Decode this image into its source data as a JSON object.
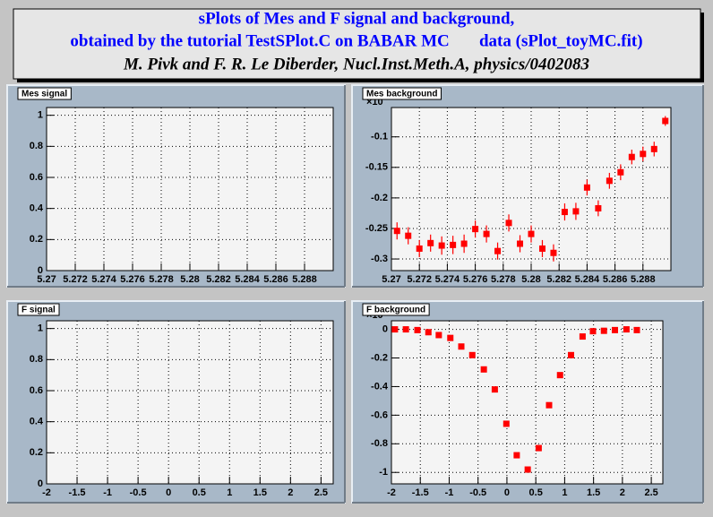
{
  "header": {
    "lines": [
      "sPlots of Mes and F signal and background,",
      "obtained by the tutorial TestSPlot.C on BABAR MC       data (sPlot_toyMC.fit)",
      "M. Pivk and F. R. Le Diberder, Nucl.Inst.Meth.A, physics/0402083"
    ]
  },
  "chart_data": [
    {
      "type": "scatter",
      "title": "Mes signal",
      "xlim": [
        5.27,
        5.29
      ],
      "xticks": [
        5.27,
        5.272,
        5.274,
        5.276,
        5.278,
        5.28,
        5.282,
        5.284,
        5.286,
        5.288
      ],
      "ylim": [
        0,
        1.05
      ],
      "yticks": [
        0,
        0.2,
        0.4,
        0.6,
        0.8,
        1
      ],
      "grid": true
    },
    {
      "type": "scatter",
      "title": "Mes background",
      "y_multiplier": "×10",
      "xlim": [
        5.27,
        5.29
      ],
      "xticks": [
        5.27,
        5.272,
        5.274,
        5.276,
        5.278,
        5.28,
        5.282,
        5.284,
        5.286,
        5.288
      ],
      "ylim": [
        -0.319,
        -0.052
      ],
      "yticks": [
        -0.3,
        -0.25,
        -0.2,
        -0.15,
        -0.1
      ],
      "grid": true,
      "color": "#ff0000",
      "x": [
        5.2704,
        5.2712,
        5.272,
        5.2728,
        5.2736,
        5.2744,
        5.2752,
        5.276,
        5.2768,
        5.2776,
        5.2784,
        5.2792,
        5.28,
        5.2808,
        5.2816,
        5.2824,
        5.2832,
        5.284,
        5.2848,
        5.2856,
        5.2864,
        5.2872,
        5.288,
        5.2888,
        5.2896
      ],
      "values": [
        -0.254,
        -0.262,
        -0.283,
        -0.274,
        -0.278,
        -0.277,
        -0.275,
        -0.251,
        -0.259,
        -0.287,
        -0.241,
        -0.275,
        -0.259,
        -0.283,
        -0.29,
        -0.223,
        -0.222,
        -0.183,
        -0.217,
        -0.172,
        -0.158,
        -0.133,
        -0.128,
        -0.12,
        -0.074
      ],
      "errors": [
        0.014,
        0.014,
        0.014,
        0.014,
        0.015,
        0.015,
        0.015,
        0.014,
        0.014,
        0.014,
        0.014,
        0.014,
        0.014,
        0.014,
        0.014,
        0.014,
        0.014,
        0.013,
        0.013,
        0.013,
        0.013,
        0.012,
        0.012,
        0.012,
        0.008
      ]
    },
    {
      "type": "scatter",
      "title": "F signal",
      "xlim": [
        -2,
        2.7
      ],
      "xticks": [
        -2,
        -1.5,
        -1,
        -0.5,
        0,
        0.5,
        1,
        1.5,
        2,
        2.5
      ],
      "ylim": [
        0,
        1.05
      ],
      "yticks": [
        0,
        0.2,
        0.4,
        0.6,
        0.8,
        1
      ],
      "grid": true
    },
    {
      "type": "scatter",
      "title": "F background",
      "y_multiplier": "×10",
      "xlim": [
        -2,
        2.7
      ],
      "xticks": [
        -2,
        -1.5,
        -1,
        -0.5,
        0,
        0.5,
        1,
        1.5,
        2,
        2.5
      ],
      "ylim": [
        -1.08,
        0.06
      ],
      "yticks": [
        -1,
        -0.8,
        -0.6,
        -0.4,
        -0.2,
        0
      ],
      "grid": true,
      "color": "#ff0000",
      "x": [
        -1.94,
        -1.75,
        -1.55,
        -1.36,
        -1.18,
        -0.98,
        -0.79,
        -0.6,
        -0.4,
        -0.21,
        -0.01,
        0.17,
        0.36,
        0.55,
        0.73,
        0.92,
        1.11,
        1.31,
        1.49,
        1.68,
        1.87,
        2.07,
        2.25
      ],
      "values": [
        0,
        0,
        -0.005,
        -0.02,
        -0.04,
        -0.06,
        -0.12,
        -0.18,
        -0.28,
        -0.42,
        -0.66,
        -0.88,
        -0.98,
        -0.83,
        -0.53,
        -0.32,
        -0.18,
        -0.05,
        -0.013,
        -0.01,
        -0.005,
        0,
        -0.005
      ]
    }
  ]
}
